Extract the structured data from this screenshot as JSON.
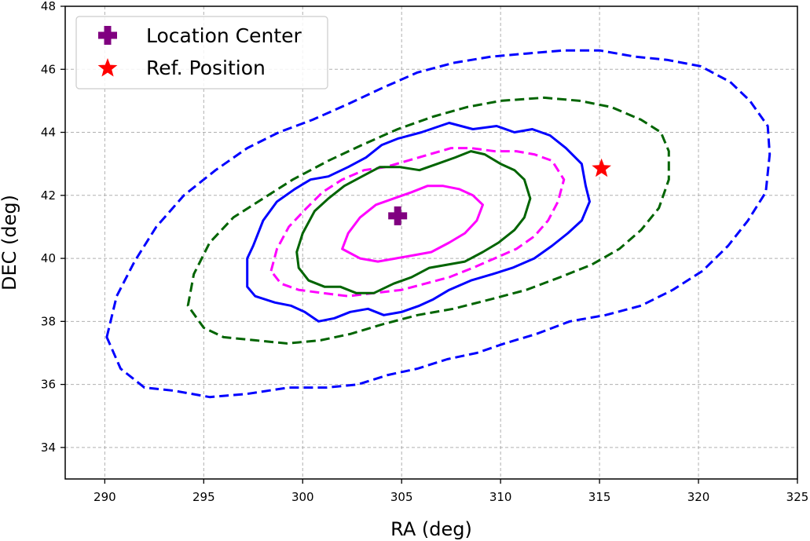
{
  "chart_data": {
    "type": "contour",
    "title": "",
    "xlabel": "RA (deg)",
    "ylabel": "DEC (deg)",
    "xlim": [
      288,
      325
    ],
    "ylim": [
      33,
      48
    ],
    "xticks": [
      290,
      295,
      300,
      305,
      310,
      315,
      320,
      325
    ],
    "yticks": [
      34,
      36,
      38,
      40,
      42,
      44,
      46,
      48
    ],
    "grid": true,
    "legend_position": "top-left",
    "legend": [
      {
        "label": "Location Center",
        "marker": "plus",
        "color": "#800080"
      },
      {
        "label": "Ref. Position",
        "marker": "star",
        "color": "#ff0000"
      }
    ],
    "points": [
      {
        "name": "location-center",
        "label": "Location Center",
        "x": 304.8,
        "y": 41.35,
        "marker": "plus",
        "color": "#800080"
      },
      {
        "name": "ref-position",
        "label": "Ref. Position",
        "x": 315.1,
        "y": 42.85,
        "marker": "star",
        "color": "#ff0000"
      }
    ],
    "contours": [
      {
        "name": "contour-blue-dashed",
        "color": "#0000ff",
        "style": "dashed",
        "points": [
          [
            290.1,
            37.5
          ],
          [
            290.6,
            38.8
          ],
          [
            291.5,
            39.9
          ],
          [
            292.6,
            41.0
          ],
          [
            294.0,
            42.0
          ],
          [
            295.6,
            42.8
          ],
          [
            297.2,
            43.5
          ],
          [
            298.8,
            44.0
          ],
          [
            300.5,
            44.4
          ],
          [
            302.3,
            44.9
          ],
          [
            304.0,
            45.4
          ],
          [
            305.8,
            45.9
          ],
          [
            307.6,
            46.2
          ],
          [
            309.5,
            46.4
          ],
          [
            311.3,
            46.5
          ],
          [
            313.2,
            46.6
          ],
          [
            315.0,
            46.6
          ],
          [
            316.8,
            46.4
          ],
          [
            318.4,
            46.3
          ],
          [
            320.1,
            46.1
          ],
          [
            321.6,
            45.6
          ],
          [
            322.6,
            45.0
          ],
          [
            323.5,
            44.2
          ],
          [
            323.6,
            43.3
          ],
          [
            323.4,
            42.1
          ],
          [
            322.5,
            41.2
          ],
          [
            321.5,
            40.4
          ],
          [
            320.2,
            39.6
          ],
          [
            318.7,
            39.0
          ],
          [
            317.1,
            38.5
          ],
          [
            315.3,
            38.2
          ],
          [
            313.5,
            38.0
          ],
          [
            311.8,
            37.6
          ],
          [
            310.2,
            37.3
          ],
          [
            308.8,
            37.0
          ],
          [
            307.3,
            36.8
          ],
          [
            305.8,
            36.5
          ],
          [
            304.3,
            36.3
          ],
          [
            302.8,
            36.0
          ],
          [
            301.2,
            35.9
          ],
          [
            299.3,
            35.9
          ],
          [
            297.2,
            35.7
          ],
          [
            295.3,
            35.6
          ],
          [
            293.5,
            35.8
          ],
          [
            292.0,
            35.9
          ],
          [
            290.8,
            36.5
          ],
          [
            290.1,
            37.5
          ]
        ]
      },
      {
        "name": "contour-green-dashed",
        "color": "#006400",
        "style": "dashed",
        "points": [
          [
            294.2,
            38.5
          ],
          [
            294.5,
            39.5
          ],
          [
            295.3,
            40.5
          ],
          [
            296.5,
            41.3
          ],
          [
            298.0,
            41.9
          ],
          [
            299.5,
            42.5
          ],
          [
            301.3,
            43.1
          ],
          [
            303.0,
            43.6
          ],
          [
            304.8,
            44.1
          ],
          [
            306.6,
            44.5
          ],
          [
            308.3,
            44.8
          ],
          [
            310.0,
            45.0
          ],
          [
            312.2,
            45.1
          ],
          [
            314.0,
            45.0
          ],
          [
            315.6,
            44.8
          ],
          [
            317.1,
            44.4
          ],
          [
            318.1,
            44.0
          ],
          [
            318.5,
            43.4
          ],
          [
            318.5,
            42.5
          ],
          [
            318.0,
            41.6
          ],
          [
            317.1,
            40.9
          ],
          [
            316.0,
            40.3
          ],
          [
            314.6,
            39.8
          ],
          [
            313.0,
            39.4
          ],
          [
            311.3,
            39.0
          ],
          [
            309.5,
            38.7
          ],
          [
            307.6,
            38.4
          ],
          [
            305.8,
            38.2
          ],
          [
            304.0,
            37.9
          ],
          [
            302.4,
            37.6
          ],
          [
            300.9,
            37.4
          ],
          [
            299.2,
            37.3
          ],
          [
            297.6,
            37.4
          ],
          [
            296.0,
            37.5
          ],
          [
            295.0,
            37.8
          ],
          [
            294.2,
            38.5
          ]
        ]
      },
      {
        "name": "contour-blue-solid",
        "color": "#0000ff",
        "style": "solid",
        "points": [
          [
            297.2,
            40.0
          ],
          [
            297.5,
            40.4
          ],
          [
            298.0,
            41.2
          ],
          [
            298.7,
            41.8
          ],
          [
            299.6,
            42.2
          ],
          [
            300.4,
            42.5
          ],
          [
            301.3,
            42.6
          ],
          [
            302.3,
            42.9
          ],
          [
            303.2,
            43.2
          ],
          [
            304.0,
            43.6
          ],
          [
            304.8,
            43.8
          ],
          [
            306.0,
            44.0
          ],
          [
            307.4,
            44.3
          ],
          [
            308.6,
            44.1
          ],
          [
            309.8,
            44.2
          ],
          [
            310.7,
            44.0
          ],
          [
            311.6,
            44.1
          ],
          [
            312.5,
            43.9
          ],
          [
            313.3,
            43.5
          ],
          [
            314.1,
            43.0
          ],
          [
            314.3,
            42.3
          ],
          [
            314.5,
            41.8
          ],
          [
            314.1,
            41.2
          ],
          [
            313.4,
            40.8
          ],
          [
            312.6,
            40.4
          ],
          [
            311.7,
            40.0
          ],
          [
            310.6,
            39.7
          ],
          [
            309.6,
            39.5
          ],
          [
            308.5,
            39.3
          ],
          [
            307.4,
            39.0
          ],
          [
            306.6,
            38.7
          ],
          [
            305.9,
            38.5
          ],
          [
            305.0,
            38.3
          ],
          [
            304.1,
            38.2
          ],
          [
            303.3,
            38.4
          ],
          [
            302.4,
            38.3
          ],
          [
            301.6,
            38.1
          ],
          [
            300.8,
            38.0
          ],
          [
            300.1,
            38.3
          ],
          [
            299.4,
            38.5
          ],
          [
            298.6,
            38.6
          ],
          [
            297.6,
            38.8
          ],
          [
            297.2,
            39.1
          ],
          [
            297.2,
            40.0
          ]
        ]
      },
      {
        "name": "contour-magenta-dashed",
        "color": "#ff00ff",
        "style": "dashed",
        "points": [
          [
            298.4,
            39.6
          ],
          [
            298.7,
            40.3
          ],
          [
            299.3,
            41.0
          ],
          [
            300.2,
            41.6
          ],
          [
            301.0,
            42.1
          ],
          [
            302.0,
            42.5
          ],
          [
            303.1,
            42.8
          ],
          [
            304.2,
            42.9
          ],
          [
            305.3,
            43.1
          ],
          [
            306.4,
            43.3
          ],
          [
            307.5,
            43.5
          ],
          [
            308.5,
            43.5
          ],
          [
            309.7,
            43.4
          ],
          [
            310.8,
            43.4
          ],
          [
            311.7,
            43.3
          ],
          [
            312.6,
            43.1
          ],
          [
            313.2,
            42.5
          ],
          [
            312.9,
            41.8
          ],
          [
            312.4,
            41.2
          ],
          [
            311.7,
            40.7
          ],
          [
            310.8,
            40.3
          ],
          [
            309.7,
            40.0
          ],
          [
            308.6,
            39.7
          ],
          [
            307.4,
            39.4
          ],
          [
            306.2,
            39.2
          ],
          [
            305.0,
            39.0
          ],
          [
            303.6,
            38.9
          ],
          [
            302.3,
            38.8
          ],
          [
            301.0,
            38.9
          ],
          [
            299.8,
            39.0
          ],
          [
            298.9,
            39.2
          ],
          [
            298.4,
            39.6
          ]
        ]
      },
      {
        "name": "contour-green-solid",
        "color": "#006400",
        "style": "solid",
        "points": [
          [
            299.7,
            40.2
          ],
          [
            300.0,
            40.8
          ],
          [
            300.6,
            41.5
          ],
          [
            301.3,
            41.9
          ],
          [
            302.1,
            42.3
          ],
          [
            303.0,
            42.6
          ],
          [
            303.9,
            42.9
          ],
          [
            304.9,
            42.9
          ],
          [
            305.9,
            42.8
          ],
          [
            306.8,
            43.0
          ],
          [
            307.7,
            43.2
          ],
          [
            308.5,
            43.4
          ],
          [
            309.2,
            43.3
          ],
          [
            310.0,
            43.0
          ],
          [
            310.7,
            42.8
          ],
          [
            311.2,
            42.5
          ],
          [
            311.5,
            41.9
          ],
          [
            311.2,
            41.3
          ],
          [
            310.7,
            40.9
          ],
          [
            309.9,
            40.5
          ],
          [
            309.1,
            40.2
          ],
          [
            308.2,
            39.9
          ],
          [
            307.3,
            39.8
          ],
          [
            306.4,
            39.7
          ],
          [
            305.5,
            39.4
          ],
          [
            304.6,
            39.2
          ],
          [
            303.6,
            38.9
          ],
          [
            302.7,
            38.9
          ],
          [
            301.9,
            39.1
          ],
          [
            301.1,
            39.1
          ],
          [
            300.3,
            39.3
          ],
          [
            299.8,
            39.7
          ],
          [
            299.7,
            40.2
          ]
        ]
      },
      {
        "name": "contour-magenta-solid",
        "color": "#ff00ff",
        "style": "solid",
        "points": [
          [
            302.0,
            40.3
          ],
          [
            302.3,
            40.8
          ],
          [
            302.9,
            41.3
          ],
          [
            303.7,
            41.7
          ],
          [
            304.6,
            41.9
          ],
          [
            305.5,
            42.1
          ],
          [
            306.3,
            42.3
          ],
          [
            307.1,
            42.3
          ],
          [
            307.9,
            42.2
          ],
          [
            308.6,
            42.0
          ],
          [
            309.1,
            41.7
          ],
          [
            308.8,
            41.2
          ],
          [
            308.2,
            40.8
          ],
          [
            307.4,
            40.5
          ],
          [
            306.5,
            40.2
          ],
          [
            305.6,
            40.1
          ],
          [
            304.7,
            40.0
          ],
          [
            303.8,
            39.9
          ],
          [
            302.9,
            40.0
          ],
          [
            302.0,
            40.3
          ]
        ]
      }
    ]
  }
}
